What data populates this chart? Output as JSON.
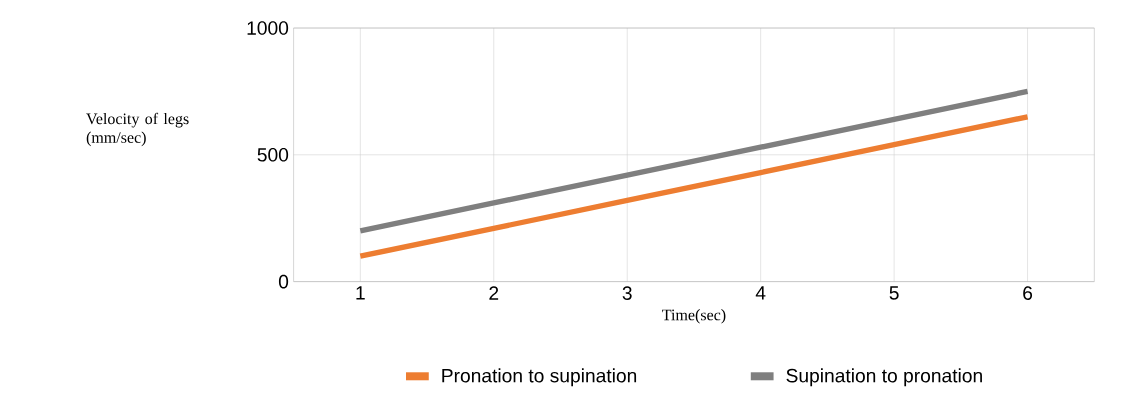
{
  "chart_data": {
    "type": "line",
    "xlabel": "Time(sec)",
    "ylabel": "Velocity of legs (mm/sec)",
    "categories": [
      "1",
      "2",
      "3",
      "4",
      "5",
      "6"
    ],
    "series": [
      {
        "name": "Pronation to supination",
        "color": "#ed7d31",
        "values": [
          100,
          210,
          320,
          430,
          540,
          650
        ]
      },
      {
        "name": "Supination to pronation",
        "color": "#7f7f7f",
        "values": [
          200,
          310,
          420,
          530,
          640,
          750
        ]
      }
    ],
    "ylim": [
      0,
      1000
    ],
    "yticks": [
      0,
      500,
      1000
    ],
    "grid": true,
    "legend": "bottom",
    "marker": "none",
    "line_style": "solid"
  }
}
